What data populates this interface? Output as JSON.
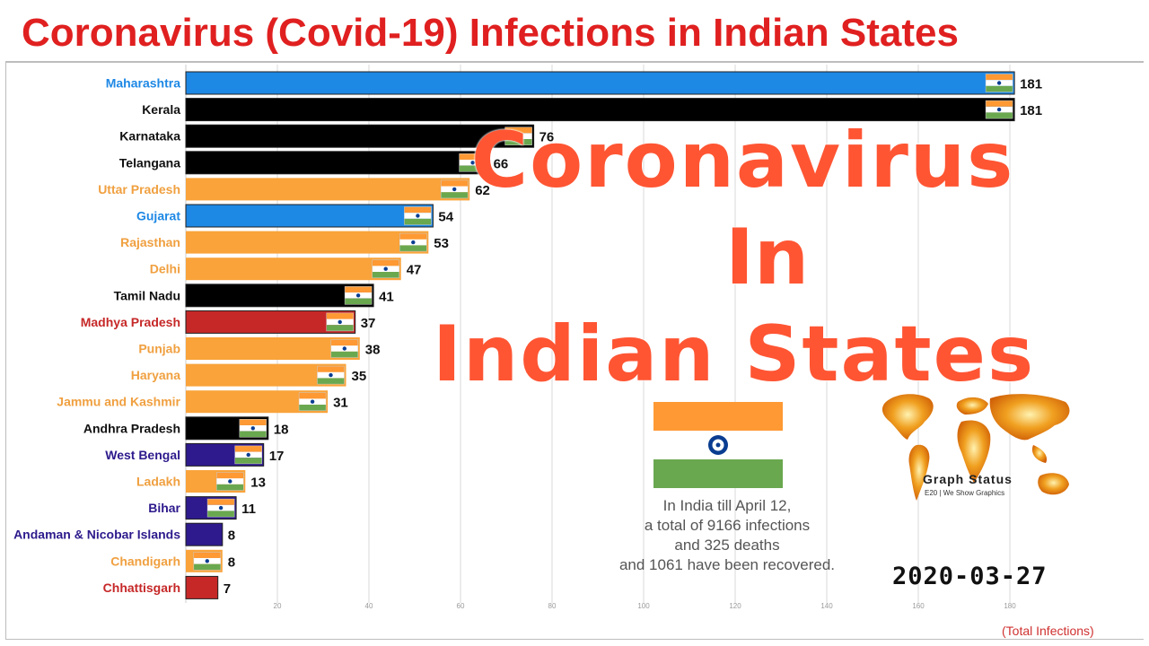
{
  "title": "Coronavirus (Covid-19) Infections in Indian States",
  "overlay": {
    "line1": "Coronavirus",
    "line2": "In",
    "line3": "Indian States"
  },
  "info_lines": [
    "In India till April 12,",
    "a total of 9166 infections",
    "and 325 deaths",
    "and 1061 have been recovered."
  ],
  "date": "2020-03-27",
  "footnote": "(Total Infections)",
  "watermark": {
    "brand": "Graph Status",
    "tagline": "E20 | We Show Graphics"
  },
  "icons": {
    "flag": "india-flag-icon",
    "map": "world-map-icon"
  },
  "colors": {
    "title": "#e02020",
    "overlay": "#ff5533",
    "blue": "#1e88e5",
    "black": "#000000",
    "orange": "#f9a33a",
    "red": "#c62828",
    "navy": "#2e1a8c",
    "flag_saffron": "#ff9933",
    "flag_green": "#6aa84f",
    "chakra": "#0a3d91"
  },
  "chart_data": {
    "type": "bar",
    "orientation": "horizontal",
    "xlabel": "(Total Infections)",
    "xlim": [
      0,
      185
    ],
    "xticks": [
      20,
      40,
      60,
      80,
      100,
      120,
      140,
      160,
      180
    ],
    "grid": true,
    "date": "2020-03-27",
    "bars": [
      {
        "label": "Maharashtra",
        "value": 181,
        "value_label": "181",
        "color": "blue",
        "flag": true
      },
      {
        "label": "Kerala",
        "value": 181,
        "value_label": "181",
        "color": "black",
        "flag": true
      },
      {
        "label": "Karnataka",
        "value": 76,
        "value_label": "76",
        "color": "black",
        "flag": true
      },
      {
        "label": "Telangana",
        "value": 66,
        "value_label": "66",
        "color": "black",
        "flag": true
      },
      {
        "label": "Uttar Pradesh",
        "value": 62,
        "value_label": "62",
        "color": "orange",
        "flag": true
      },
      {
        "label": "Gujarat",
        "value": 54,
        "value_label": "54",
        "color": "blue",
        "flag": true
      },
      {
        "label": "Rajasthan",
        "value": 53,
        "value_label": "53",
        "color": "orange",
        "flag": true
      },
      {
        "label": "Delhi",
        "value": 47,
        "value_label": "47",
        "color": "orange",
        "flag": true
      },
      {
        "label": "Tamil Nadu",
        "value": 41,
        "value_label": "41",
        "color": "black",
        "flag": true
      },
      {
        "label": "Madhya Pradesh",
        "value": 37,
        "value_label": "37",
        "color": "red",
        "flag": true
      },
      {
        "label": "Punjab",
        "value": 38,
        "value_label": "38",
        "color": "orange",
        "flag": true
      },
      {
        "label": "Haryana",
        "value": 35,
        "value_label": "35",
        "color": "orange",
        "flag": true
      },
      {
        "label": "Jammu and Kashmir",
        "value": 31,
        "value_label": "31",
        "color": "orange",
        "flag": true
      },
      {
        "label": "Andhra Pradesh",
        "value": 18,
        "value_label": "18",
        "color": "black",
        "flag": true
      },
      {
        "label": "West Bengal",
        "value": 17,
        "value_label": "17",
        "color": "navy",
        "flag": true
      },
      {
        "label": "Ladakh",
        "value": 13,
        "value_label": "13",
        "color": "orange",
        "flag": true
      },
      {
        "label": "Bihar",
        "value": 11,
        "value_label": "11",
        "color": "navy",
        "flag": true
      },
      {
        "label": "Andaman & Nicobar Islands",
        "value": 8,
        "value_label": "8",
        "color": "navy",
        "flag": false
      },
      {
        "label": "Chandigarh",
        "value": 8,
        "value_label": "8",
        "color": "orange",
        "flag": true
      },
      {
        "label": "Chhattisgarh",
        "value": 7,
        "value_label": "7",
        "color": "red",
        "flag": false
      }
    ]
  }
}
